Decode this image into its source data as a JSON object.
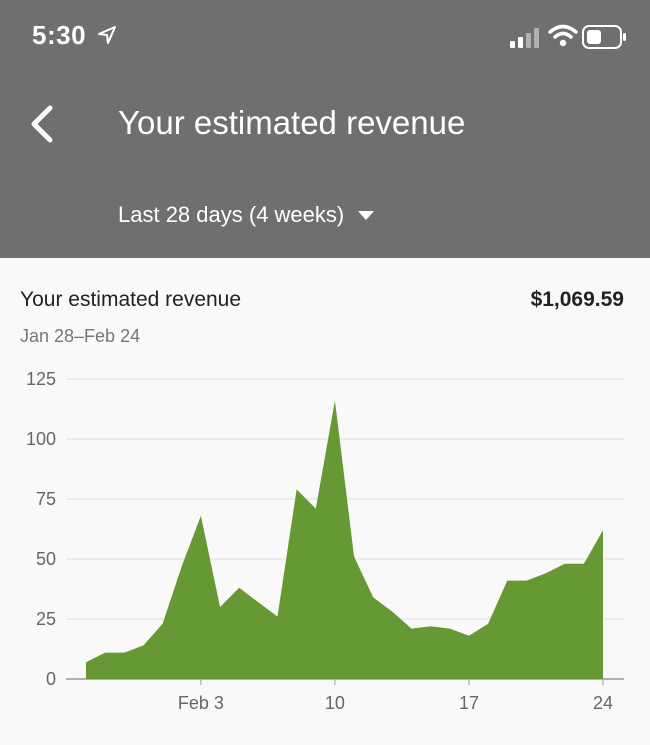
{
  "status_bar": {
    "time": "5:30",
    "icons": [
      "location-arrow-icon",
      "cellular-signal-icon",
      "wifi-icon",
      "battery-icon"
    ]
  },
  "header": {
    "back_icon": "back-chevron-icon",
    "title": "Your estimated revenue",
    "range_label": "Last 28 days (4 weeks)",
    "range_icon": "caret-down-icon"
  },
  "card": {
    "title": "Your estimated revenue",
    "value": "$1,069.59",
    "date_range": "Jan 28–Feb 24"
  },
  "colors": {
    "header_bg": "#6f6f6f",
    "area_fill": "#669933",
    "grid": "#e0e0e0",
    "background": "#f9f9f9"
  },
  "chart_data": {
    "type": "area",
    "x_labels": [
      "Feb 3",
      "10",
      "17",
      "24"
    ],
    "x_label_positions_day": [
      7,
      14,
      21,
      28
    ],
    "days": [
      1,
      2,
      3,
      4,
      5,
      6,
      7,
      8,
      9,
      10,
      11,
      12,
      13,
      14,
      15,
      16,
      17,
      18,
      19,
      20,
      21,
      22,
      23,
      24,
      25,
      26,
      27,
      28
    ],
    "values": [
      7,
      11,
      11,
      14,
      23,
      47,
      68,
      30,
      38,
      32,
      26,
      79,
      71,
      116,
      51,
      34,
      28,
      21,
      22,
      21,
      18,
      23,
      41,
      41,
      44,
      48,
      48,
      62
    ],
    "yticks": [
      0,
      25,
      50,
      75,
      100,
      125
    ],
    "ylim": [
      0,
      125
    ],
    "grid": true
  }
}
